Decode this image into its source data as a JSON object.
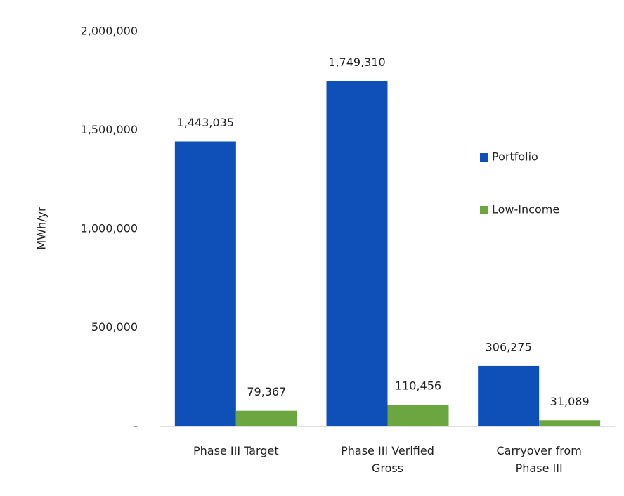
{
  "chart_data": {
    "type": "bar",
    "categories": [
      "Phase III Target",
      "Phase III Verified Gross",
      "Carryover from Phase III"
    ],
    "series": [
      {
        "name": "Portfolio",
        "color": "#0f4fb8",
        "values": [
          1443035,
          1749310,
          306275
        ],
        "value_labels": [
          "1,443,035",
          "1,749,310",
          "306,275"
        ]
      },
      {
        "name": "Low-Income",
        "color": "#6ca641",
        "values": [
          79367,
          110456,
          31089
        ],
        "value_labels": [
          "79,367",
          "110,456",
          "31,089"
        ]
      }
    ],
    "y_label": "MWh/yr",
    "ylim": [
      0,
      2000000
    ],
    "yticks": [
      {
        "value": 0,
        "label": "-"
      },
      {
        "value": 500000,
        "label": "500,000"
      },
      {
        "value": 1000000,
        "label": "1,000,000"
      },
      {
        "value": 1500000,
        "label": "1,500,000"
      },
      {
        "value": 2000000,
        "label": "2,000,000"
      }
    ],
    "grid": false,
    "legend": "right"
  }
}
